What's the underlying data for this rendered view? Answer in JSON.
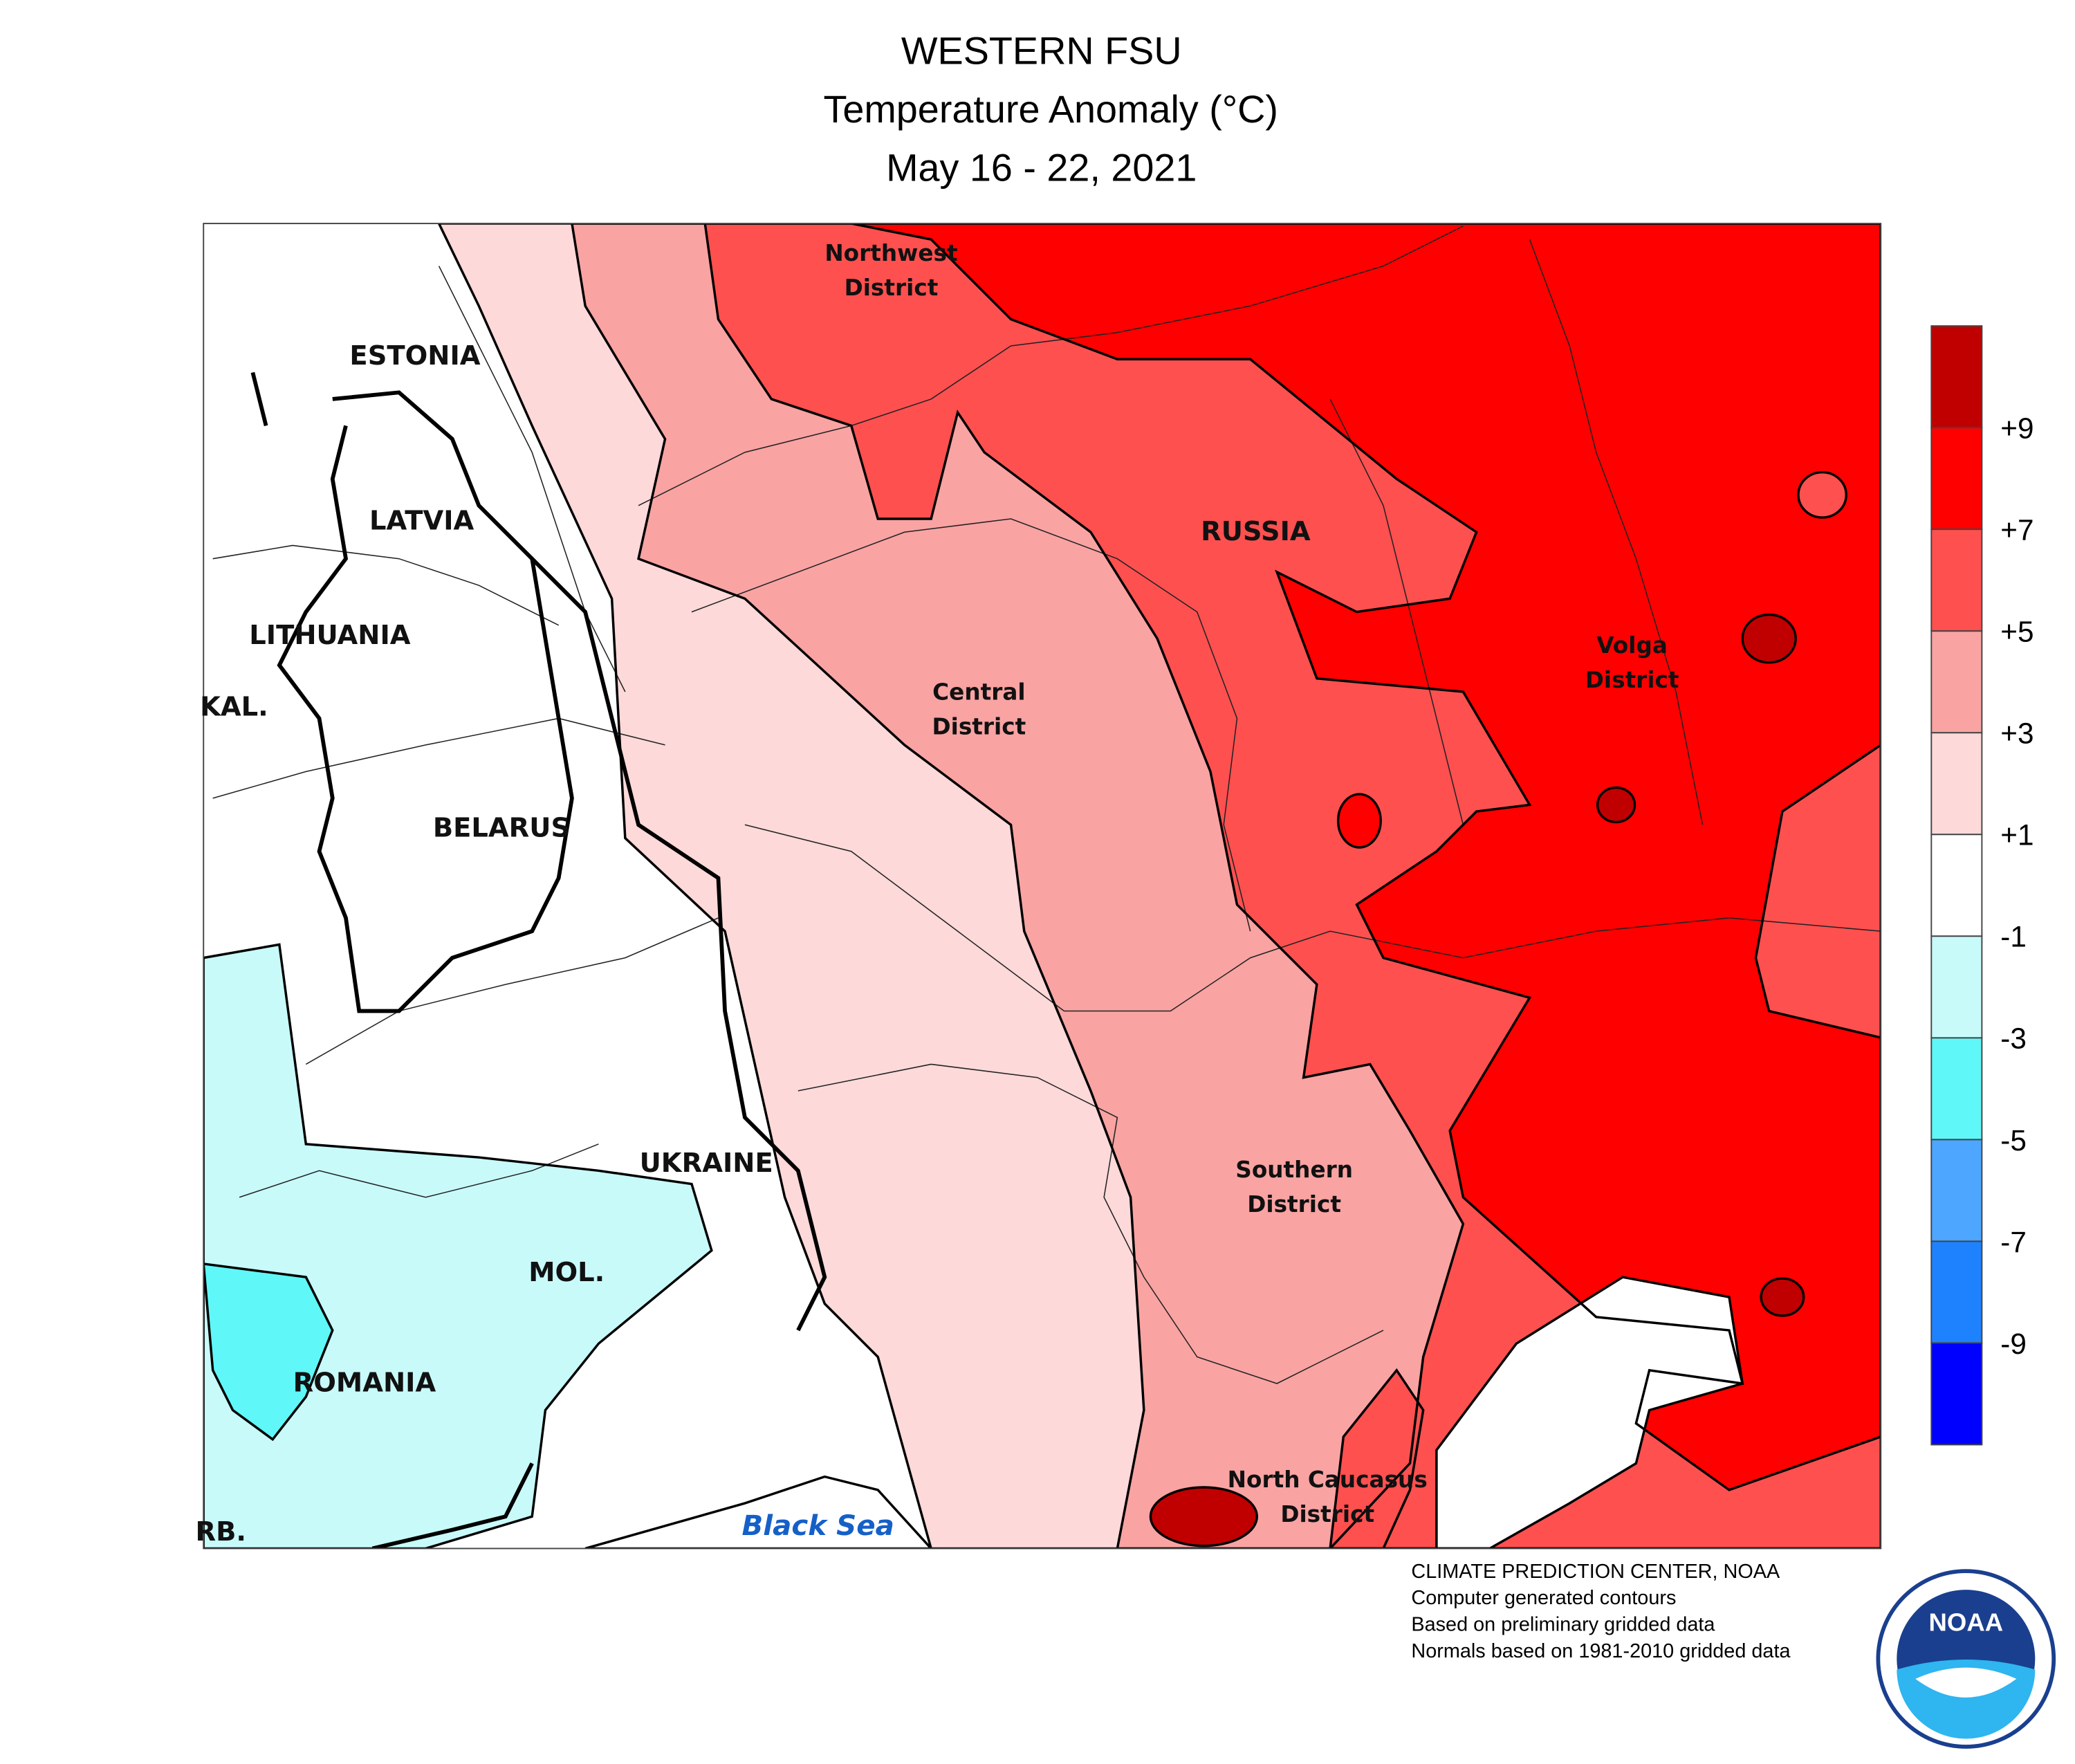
{
  "header": {
    "title": [
      "WESTERN FSU",
      "Temperature Anomaly (°C)",
      "May 16 - 22, 2021"
    ]
  },
  "map": {
    "labels": [
      {
        "lines": [
          "ESTONIA"
        ]
      },
      {
        "lines": [
          "LATVIA"
        ]
      },
      {
        "lines": [
          "LITHUANIA"
        ]
      },
      {
        "lines": [
          "KAL."
        ]
      },
      {
        "lines": [
          "BELARUS"
        ]
      },
      {
        "lines": [
          "UKRAINE"
        ]
      },
      {
        "lines": [
          "MOL."
        ]
      },
      {
        "lines": [
          "ROMANIA"
        ]
      },
      {
        "lines": [
          "RB."
        ]
      },
      {
        "lines": [
          "RUSSIA"
        ]
      },
      {
        "lines": [
          "Northwest",
          "District"
        ]
      },
      {
        "lines": [
          "Central",
          "District"
        ]
      },
      {
        "lines": [
          "Volga",
          "District"
        ]
      },
      {
        "lines": [
          "Southern",
          "District"
        ]
      },
      {
        "lines": [
          "North Caucasus",
          "District"
        ]
      }
    ],
    "sea_label": "Black Sea"
  },
  "legend": {
    "colors": [
      "#c00000",
      "#ff0000",
      "#ff5050",
      "#f9a3a3",
      "#fdd9d9",
      "#ffffff",
      "#c8fafa",
      "#5ff7f7",
      "#4da6ff",
      "#1e82ff",
      "#0000ff"
    ],
    "ticks": [
      "+9",
      "+7",
      "+5",
      "+3",
      "+1",
      "-1",
      "-3",
      "-5",
      "-7",
      "-9"
    ]
  },
  "credits": [
    "CLIMATE PREDICTION CENTER, NOAA",
    "Computer generated contours",
    "Based on preliminary gridded data",
    "Normals based on 1981-2010 gridded data"
  ],
  "logo": "NOAA"
}
